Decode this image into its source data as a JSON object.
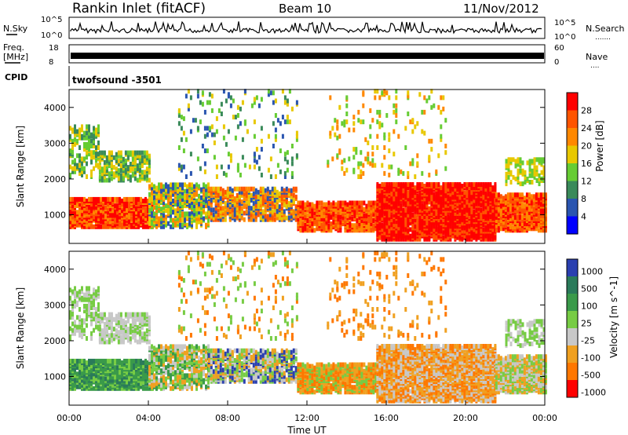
{
  "header": {
    "station": "Rankin Inlet (fitACF)",
    "beam": "Beam 10",
    "date": "11/Nov/2012"
  },
  "noise_panel": {
    "left_label": "N.Sky",
    "left_ticks": [
      "10^5",
      "10^0"
    ],
    "right_ticks": [
      "10^5",
      "10^0"
    ],
    "right_label": "N.Search",
    "right_marker": "......."
  },
  "freq_panel": {
    "left_label": "Freq.",
    "left_unit": "[MHz]",
    "left_ticks": [
      "18",
      "8"
    ],
    "right_ticks": [
      "60",
      "0"
    ],
    "right_label": "Nave",
    "right_marker": "....",
    "cpid_label": "CPID",
    "cpid_value": "twofsound  -3501"
  },
  "colors": {
    "power": [
      "#0000ff",
      "#2a55b0",
      "#3a8a5a",
      "#66cc33",
      "#e8c800",
      "#ff8800",
      "#ff5500",
      "#ff0000"
    ],
    "velocity": [
      "#2a3fb0",
      "#2a7a5a",
      "#3a9a4a",
      "#77cc44",
      "#c8c8c8",
      "#f0a020",
      "#ff7700",
      "#ff0000"
    ]
  },
  "chart_data": [
    {
      "type": "heatmap",
      "name": "power",
      "ylabel": "Slant Range [km]",
      "yticks": [
        "1000",
        "2000",
        "3000",
        "4000"
      ],
      "ylim": [
        200,
        4500
      ],
      "colorbar_label": "Power [dB]",
      "colorbar_ticks": [
        "4",
        "8",
        "12",
        "16",
        "20",
        "24",
        "28"
      ],
      "regions": [
        {
          "t0": 0.0,
          "t1": 4.2,
          "r0": 600,
          "r1": 1400,
          "level": "24-28"
        },
        {
          "t0": 1.5,
          "t1": 4.0,
          "r0": 1900,
          "r1": 2700,
          "level": "8-16"
        },
        {
          "t0": 4.0,
          "t1": 11.5,
          "r0": 600,
          "r1": 1800,
          "level": "12-24"
        },
        {
          "t0": 11.5,
          "t1": 15.5,
          "r0": 500,
          "r1": 1300,
          "level": "20-28"
        },
        {
          "t0": 15.5,
          "t1": 21.5,
          "r0": 200,
          "r1": 1800,
          "level": "28+"
        },
        {
          "t0": 21.5,
          "t1": 24.0,
          "r0": 500,
          "r1": 1500,
          "level": "24-28"
        }
      ]
    },
    {
      "type": "heatmap",
      "name": "velocity",
      "ylabel": "Slant Range [km]",
      "yticks": [
        "1000",
        "2000",
        "3000",
        "4000"
      ],
      "ylim": [
        200,
        4500
      ],
      "colorbar_label": "Velocity [m s^-1]",
      "colorbar_ticks": [
        "1000",
        "500",
        "100",
        "25",
        "-25",
        "-100",
        "-500",
        "-1000"
      ],
      "xlabel": "Time UT",
      "xticks": [
        "00:00",
        "04:00",
        "08:00",
        "12:00",
        "16:00",
        "20:00",
        "00:00"
      ],
      "xlim": [
        0,
        24
      ],
      "regions": [
        {
          "t0": 0.0,
          "t1": 4.2,
          "r0": 600,
          "r1": 1400,
          "level": "25 to 100"
        },
        {
          "t0": 0.0,
          "t1": 4.0,
          "r0": 1900,
          "r1": 2700,
          "level": "-25 to 25"
        },
        {
          "t0": 4.0,
          "t1": 11.5,
          "r0": 600,
          "r1": 1800,
          "level": "-100 to 100"
        },
        {
          "t0": 11.5,
          "t1": 18.0,
          "r0": 500,
          "r1": 1800,
          "level": "-500 to -100"
        },
        {
          "t0": 18.0,
          "t1": 21.0,
          "r0": 300,
          "r1": 1500,
          "level": "-25 to 25"
        },
        {
          "t0": 21.0,
          "t1": 24.0,
          "r0": 500,
          "r1": 1500,
          "level": "-100 to 100"
        }
      ]
    }
  ]
}
